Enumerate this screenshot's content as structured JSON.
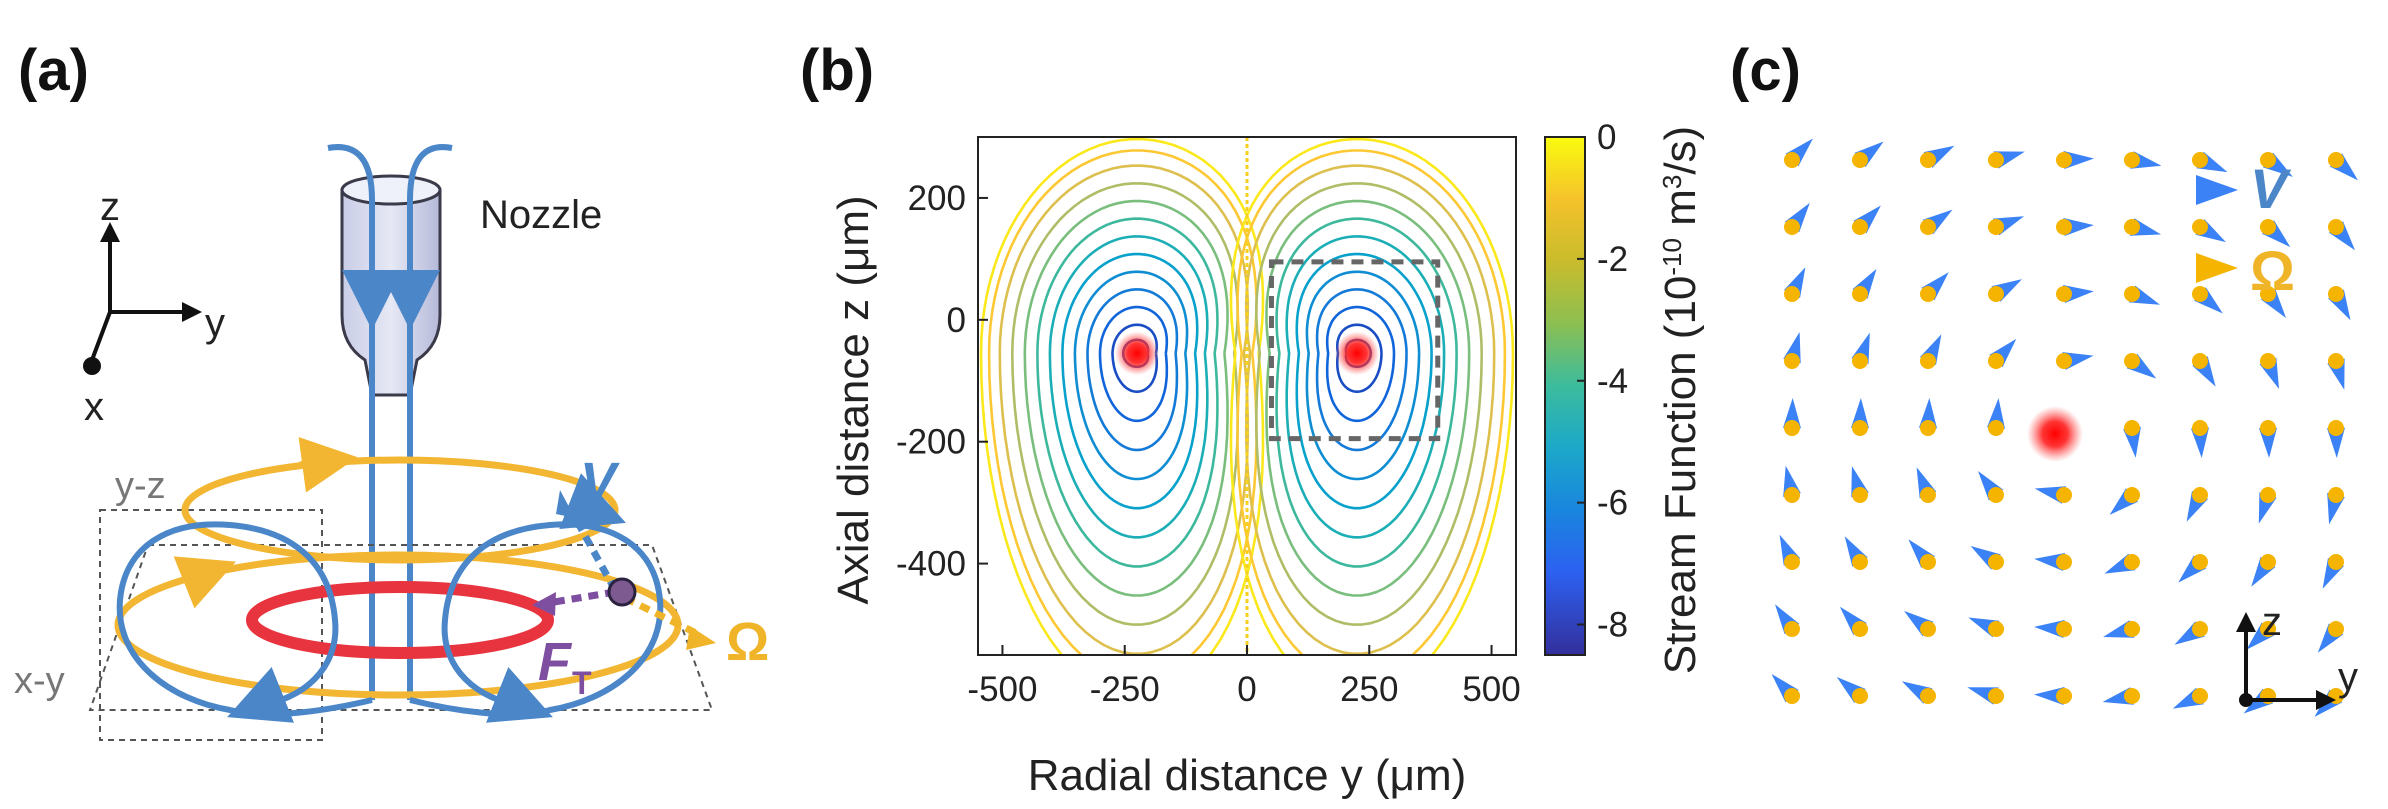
{
  "panels": {
    "a": {
      "label": "(a)",
      "axes": {
        "z": "z",
        "y": "y",
        "x": "x"
      },
      "nozzle_label": "Nozzle",
      "plane_yz": "y-z",
      "plane_xy": "x-y",
      "v_label": "V",
      "omega_label": "Ω",
      "force_label": "F",
      "force_sub": "T"
    },
    "b": {
      "label": "(b)"
    },
    "c": {
      "label": "(c)",
      "legend_v": "V",
      "legend_omega": "Ω",
      "axis_z": "z",
      "axis_y": "y"
    }
  },
  "chart_data": [
    {
      "type": "contour",
      "panel": "(b)",
      "xlabel": "Radial distance y (μm)",
      "ylabel": "Axial distance z (μm)",
      "xlim": [
        -550,
        550
      ],
      "ylim": [
        -550,
        300
      ],
      "xticks": [
        -500,
        -250,
        0,
        250,
        500
      ],
      "yticks": [
        200,
        0,
        -200,
        -400
      ],
      "colorbar": {
        "label": "Stream Function (10",
        "label_exp": "-10",
        "label_mid": " m",
        "label_exp2": "3",
        "label_end": "/s)",
        "min": -8.5,
        "max": 0,
        "ticks": [
          0,
          -2,
          -4,
          -6,
          -8
        ],
        "colormap": "parula"
      },
      "vortex_centers": [
        {
          "y": -225,
          "z": -55
        },
        {
          "y": 225,
          "z": -55
        }
      ],
      "contour_levels": [
        -0.25,
        -0.7,
        -1.3,
        -2.0,
        -2.7,
        -3.4,
        -4.1,
        -4.8,
        -5.5,
        -6.2,
        -6.9,
        -7.6,
        -8.2
      ],
      "highlight_box": {
        "y": [
          50,
          390
        ],
        "z": [
          -195,
          95
        ]
      }
    },
    {
      "type": "quiver",
      "panel": "(c)",
      "grid_cols": 9,
      "grid_rows": 9,
      "vortex_center": {
        "col": 4.2,
        "row": 4.1
      },
      "series": [
        {
          "name": "V",
          "color": "#3b82f6"
        },
        {
          "name": "Ω",
          "color": "#f4b400"
        }
      ]
    }
  ],
  "colors": {
    "flow_blue": "#4a86c8",
    "ring_yellow": "#f2b632",
    "ring_red": "#e8343f",
    "force_purple": "#7e4fa0",
    "omega_orange": "#f0b429",
    "particle_red": "#ff1a1a"
  }
}
